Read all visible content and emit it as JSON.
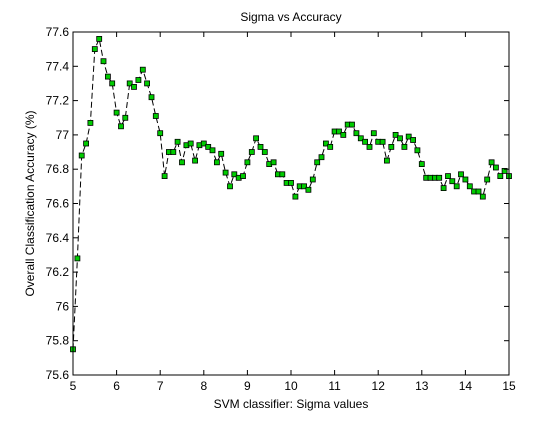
{
  "colors": {
    "background": "#ffffff",
    "axes": "#000000",
    "line": "#000000",
    "marker_fill": "#00cc00",
    "marker_edge": "#000000"
  },
  "chart_data": {
    "type": "line",
    "title": "Sigma vs Accuracy",
    "xlabel": "SVM classifier: Sigma values",
    "ylabel": "Overall Classification Accuracy (%)",
    "xlim": [
      5,
      15
    ],
    "ylim": [
      75.6,
      77.6
    ],
    "xticks": [
      5,
      6,
      7,
      8,
      9,
      10,
      11,
      12,
      13,
      14,
      15
    ],
    "xtick_labels": [
      "5",
      "6",
      "7",
      "8",
      "9",
      "10",
      "11",
      "12",
      "13",
      "14",
      "15"
    ],
    "yticks": [
      75.6,
      75.8,
      76.0,
      76.2,
      76.4,
      76.6,
      76.8,
      77.0,
      77.2,
      77.4,
      77.6
    ],
    "ytick_labels": [
      "75.6",
      "75.8",
      "76",
      "76.2",
      "76.4",
      "76.6",
      "76.8",
      "77",
      "77.2",
      "77.4",
      "77.6"
    ],
    "grid": false,
    "legend": "none",
    "series": [
      {
        "line_style": "dashed",
        "marker": "square",
        "x": [
          5.0,
          5.1,
          5.2,
          5.3,
          5.4,
          5.5,
          5.6,
          5.7,
          5.8,
          5.9,
          6.0,
          6.1,
          6.2,
          6.3,
          6.4,
          6.5,
          6.6,
          6.7,
          6.8,
          6.9,
          7.0,
          7.1,
          7.2,
          7.3,
          7.4,
          7.5,
          7.6,
          7.7,
          7.8,
          7.9,
          8.0,
          8.1,
          8.2,
          8.3,
          8.4,
          8.5,
          8.6,
          8.7,
          8.8,
          8.9,
          9.0,
          9.1,
          9.2,
          9.3,
          9.4,
          9.5,
          9.6,
          9.7,
          9.8,
          9.9,
          10.0,
          10.1,
          10.2,
          10.3,
          10.4,
          10.5,
          10.6,
          10.7,
          10.8,
          10.9,
          11.0,
          11.1,
          11.2,
          11.3,
          11.4,
          11.5,
          11.6,
          11.7,
          11.8,
          11.9,
          12.0,
          12.1,
          12.2,
          12.3,
          12.4,
          12.5,
          12.6,
          12.7,
          12.8,
          12.9,
          13.0,
          13.1,
          13.2,
          13.3,
          13.4,
          13.5,
          13.6,
          13.7,
          13.8,
          13.9,
          14.0,
          14.1,
          14.2,
          14.3,
          14.4,
          14.5,
          14.6,
          14.7,
          14.8,
          14.9,
          15.0
        ],
        "y": [
          75.75,
          76.28,
          76.88,
          76.95,
          77.07,
          77.5,
          77.56,
          77.43,
          77.34,
          77.3,
          77.13,
          77.05,
          77.1,
          77.3,
          77.28,
          77.32,
          77.38,
          77.3,
          77.22,
          77.11,
          77.01,
          76.76,
          76.9,
          76.9,
          76.96,
          76.84,
          76.94,
          76.95,
          76.85,
          76.94,
          76.95,
          76.93,
          76.91,
          76.84,
          76.89,
          76.78,
          76.7,
          76.77,
          76.75,
          76.76,
          76.84,
          76.9,
          76.98,
          76.93,
          76.9,
          76.83,
          76.84,
          76.77,
          76.77,
          76.72,
          76.72,
          76.64,
          76.7,
          76.7,
          76.68,
          76.74,
          76.84,
          76.87,
          76.95,
          76.93,
          77.02,
          77.02,
          77.0,
          77.06,
          77.06,
          77.01,
          76.98,
          76.96,
          76.93,
          77.01,
          76.96,
          76.96,
          76.85,
          76.93,
          77.0,
          76.98,
          76.93,
          76.99,
          76.97,
          76.91,
          76.83,
          76.75,
          76.75,
          76.75,
          76.75,
          76.69,
          76.76,
          76.73,
          76.7,
          76.77,
          76.74,
          76.7,
          76.67,
          76.67,
          76.64,
          76.74,
          76.84,
          76.81,
          76.76,
          76.79,
          76.76
        ]
      }
    ]
  }
}
